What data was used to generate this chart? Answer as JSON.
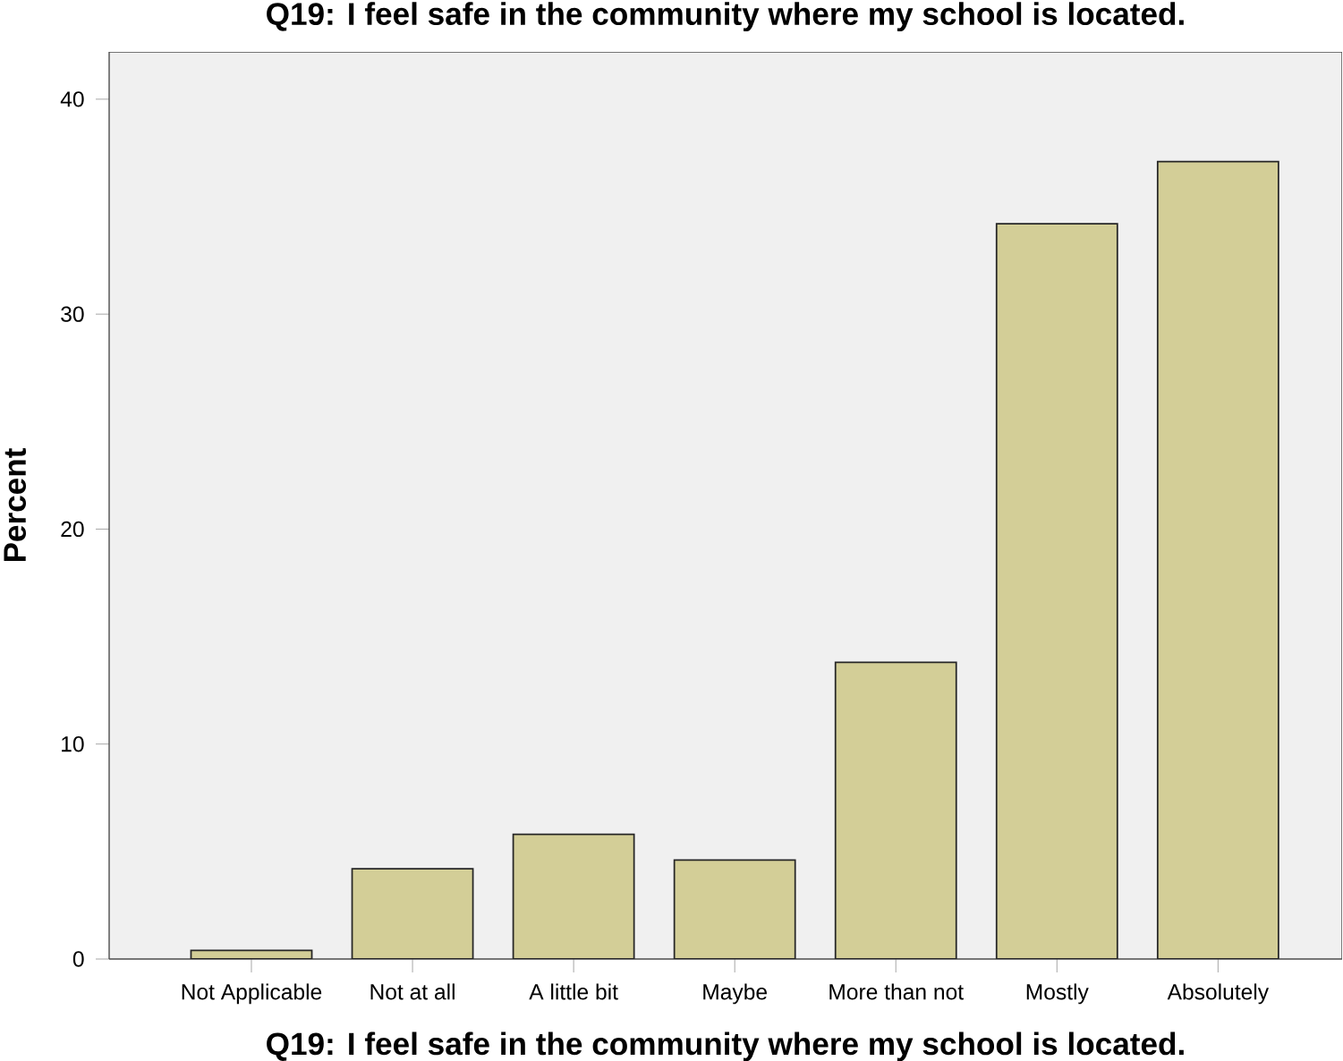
{
  "chart_data": {
    "type": "bar",
    "title": "Q19: I feel safe in the community where my school is located.",
    "xlabel": "Q19: I feel safe in the community where my school is located.",
    "ylabel": "Percent",
    "categories": [
      "Not Applicable",
      "Not at all",
      "A little bit",
      "Maybe",
      "More than not",
      "Mostly",
      "Absolutely"
    ],
    "values": [
      0.4,
      4.2,
      5.8,
      4.6,
      13.8,
      34.2,
      37.1
    ],
    "color": "#d3ce97",
    "ylim": [
      0,
      42.2
    ],
    "yticks": [
      0,
      10,
      20,
      30,
      40
    ],
    "grid": false
  }
}
